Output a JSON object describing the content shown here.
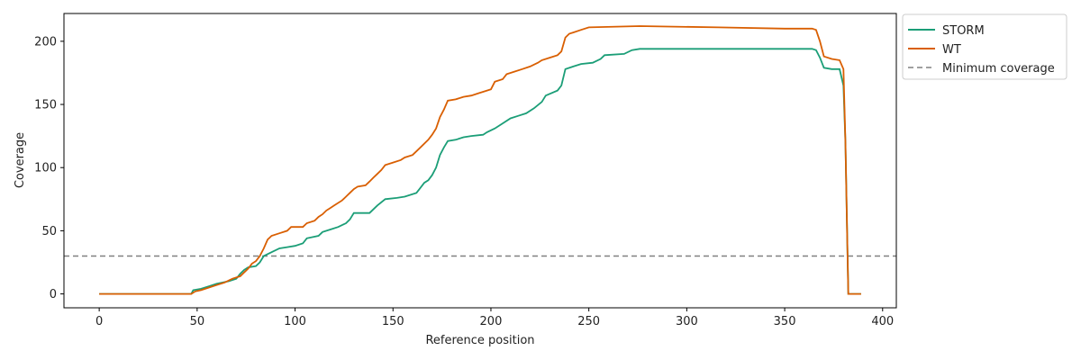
{
  "chart_data": {
    "type": "line",
    "title": "",
    "xlabel": "Reference position",
    "ylabel": "Coverage",
    "xlim": [
      -18,
      407
    ],
    "ylim": [
      -11,
      222
    ],
    "xticks": [
      0,
      50,
      100,
      150,
      200,
      250,
      300,
      350,
      400
    ],
    "yticks": [
      0,
      50,
      100,
      150,
      200
    ],
    "grid": false,
    "legend_placement": "outside-top-right",
    "series": [
      {
        "name": "STORM",
        "color": "#1b9e77",
        "points": [
          [
            0,
            0
          ],
          [
            47,
            0
          ],
          [
            48,
            3
          ],
          [
            52,
            4
          ],
          [
            56,
            6
          ],
          [
            60,
            8
          ],
          [
            66,
            10
          ],
          [
            70,
            12
          ],
          [
            72,
            16
          ],
          [
            74,
            19
          ],
          [
            76,
            21
          ],
          [
            80,
            22
          ],
          [
            82,
            25
          ],
          [
            84,
            30
          ],
          [
            88,
            33
          ],
          [
            92,
            36
          ],
          [
            96,
            37
          ],
          [
            100,
            38
          ],
          [
            104,
            40
          ],
          [
            106,
            44
          ],
          [
            112,
            46
          ],
          [
            114,
            49
          ],
          [
            118,
            51
          ],
          [
            122,
            53
          ],
          [
            126,
            56
          ],
          [
            128,
            59
          ],
          [
            130,
            64
          ],
          [
            138,
            64
          ],
          [
            142,
            70
          ],
          [
            146,
            75
          ],
          [
            152,
            76
          ],
          [
            156,
            77
          ],
          [
            162,
            80
          ],
          [
            164,
            84
          ],
          [
            166,
            88
          ],
          [
            168,
            90
          ],
          [
            170,
            94
          ],
          [
            172,
            100
          ],
          [
            174,
            110
          ],
          [
            176,
            116
          ],
          [
            178,
            121
          ],
          [
            182,
            122
          ],
          [
            186,
            124
          ],
          [
            190,
            125
          ],
          [
            196,
            126
          ],
          [
            198,
            128
          ],
          [
            202,
            131
          ],
          [
            206,
            135
          ],
          [
            210,
            139
          ],
          [
            214,
            141
          ],
          [
            218,
            143
          ],
          [
            222,
            147
          ],
          [
            226,
            152
          ],
          [
            228,
            157
          ],
          [
            234,
            161
          ],
          [
            236,
            165
          ],
          [
            238,
            178
          ],
          [
            242,
            180
          ],
          [
            246,
            182
          ],
          [
            252,
            183
          ],
          [
            256,
            186
          ],
          [
            258,
            189
          ],
          [
            268,
            190
          ],
          [
            272,
            193
          ],
          [
            276,
            194
          ],
          [
            300,
            194
          ],
          [
            350,
            194
          ],
          [
            364,
            194
          ],
          [
            366,
            193
          ],
          [
            368,
            187
          ],
          [
            370,
            179
          ],
          [
            374,
            178
          ],
          [
            378,
            178
          ],
          [
            380,
            165
          ],
          [
            381,
            120
          ],
          [
            382,
            40
          ],
          [
            382.5,
            0
          ],
          [
            389,
            0
          ]
        ]
      },
      {
        "name": "WT",
        "color": "#d95f02",
        "points": [
          [
            0,
            0
          ],
          [
            47,
            0
          ],
          [
            49,
            2
          ],
          [
            52,
            3
          ],
          [
            56,
            5
          ],
          [
            60,
            7
          ],
          [
            64,
            9
          ],
          [
            68,
            12
          ],
          [
            72,
            14
          ],
          [
            74,
            17
          ],
          [
            76,
            20
          ],
          [
            78,
            24
          ],
          [
            80,
            26
          ],
          [
            82,
            30
          ],
          [
            84,
            36
          ],
          [
            86,
            43
          ],
          [
            88,
            46
          ],
          [
            92,
            48
          ],
          [
            96,
            50
          ],
          [
            98,
            53
          ],
          [
            104,
            53
          ],
          [
            106,
            56
          ],
          [
            110,
            58
          ],
          [
            112,
            61
          ],
          [
            114,
            63
          ],
          [
            116,
            66
          ],
          [
            118,
            68
          ],
          [
            120,
            70
          ],
          [
            124,
            74
          ],
          [
            126,
            77
          ],
          [
            128,
            80
          ],
          [
            130,
            83
          ],
          [
            132,
            85
          ],
          [
            136,
            86
          ],
          [
            138,
            89
          ],
          [
            140,
            92
          ],
          [
            142,
            95
          ],
          [
            144,
            98
          ],
          [
            146,
            102
          ],
          [
            150,
            104
          ],
          [
            154,
            106
          ],
          [
            156,
            108
          ],
          [
            160,
            110
          ],
          [
            164,
            116
          ],
          [
            168,
            122
          ],
          [
            170,
            126
          ],
          [
            172,
            131
          ],
          [
            174,
            140
          ],
          [
            176,
            146
          ],
          [
            178,
            153
          ],
          [
            182,
            154
          ],
          [
            186,
            156
          ],
          [
            190,
            157
          ],
          [
            194,
            159
          ],
          [
            196,
            160
          ],
          [
            200,
            162
          ],
          [
            202,
            168
          ],
          [
            206,
            170
          ],
          [
            208,
            174
          ],
          [
            212,
            176
          ],
          [
            216,
            178
          ],
          [
            220,
            180
          ],
          [
            224,
            183
          ],
          [
            226,
            185
          ],
          [
            230,
            187
          ],
          [
            234,
            189
          ],
          [
            236,
            192
          ],
          [
            238,
            203
          ],
          [
            240,
            206
          ],
          [
            242,
            207
          ],
          [
            246,
            209
          ],
          [
            250,
            211
          ],
          [
            276,
            212
          ],
          [
            316,
            211
          ],
          [
            350,
            210
          ],
          [
            364,
            210
          ],
          [
            366,
            209
          ],
          [
            368,
            200
          ],
          [
            370,
            188
          ],
          [
            374,
            186
          ],
          [
            378,
            185
          ],
          [
            380,
            178
          ],
          [
            381,
            120
          ],
          [
            382,
            40
          ],
          [
            382.5,
            0
          ],
          [
            389,
            0
          ]
        ]
      }
    ],
    "reference_line": {
      "name": "Minimum coverage",
      "value": 30,
      "color": "#808080",
      "style": "dashed"
    }
  }
}
